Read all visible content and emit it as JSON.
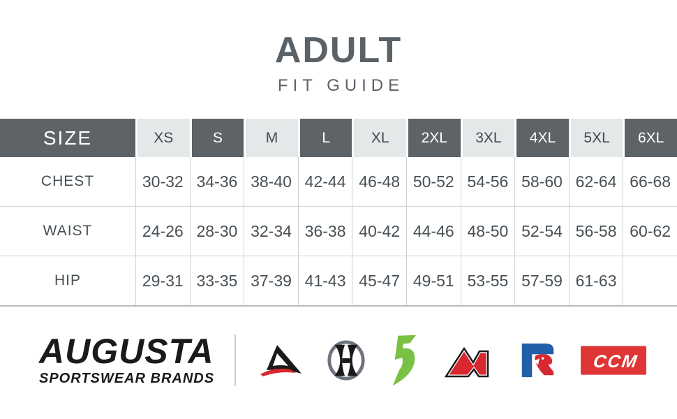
{
  "page": {
    "title": "ADULT",
    "subtitle": "FIT GUIDE"
  },
  "size_table": {
    "corner_label": "SIZE",
    "sizes": [
      "XS",
      "S",
      "M",
      "L",
      "XL",
      "2XL",
      "3XL",
      "4XL",
      "5XL",
      "6XL"
    ],
    "rows": [
      {
        "label": "CHEST",
        "values": [
          "30-32",
          "34-36",
          "38-40",
          "42-44",
          "46-48",
          "50-52",
          "54-56",
          "58-60",
          "62-64",
          "66-68"
        ]
      },
      {
        "label": "WAIST",
        "values": [
          "24-26",
          "28-30",
          "32-34",
          "36-38",
          "40-42",
          "44-46",
          "48-50",
          "52-54",
          "56-58",
          "60-62"
        ]
      },
      {
        "label": "HIP",
        "values": [
          "29-31",
          "33-35",
          "37-39",
          "41-43",
          "45-47",
          "49-51",
          "53-55",
          "57-59",
          "61-63",
          ""
        ]
      }
    ]
  },
  "chart_data": {
    "type": "table",
    "title": "ADULT FIT GUIDE",
    "columns": [
      "SIZE",
      "XS",
      "S",
      "M",
      "L",
      "XL",
      "2XL",
      "3XL",
      "4XL",
      "5XL",
      "6XL"
    ],
    "rows": [
      [
        "CHEST",
        "30-32",
        "34-36",
        "38-40",
        "42-44",
        "46-48",
        "50-52",
        "54-56",
        "58-60",
        "62-64",
        "66-68"
      ],
      [
        "WAIST",
        "24-26",
        "28-30",
        "32-34",
        "36-38",
        "40-42",
        "44-46",
        "48-50",
        "52-54",
        "56-58",
        "60-62"
      ],
      [
        "HIP",
        "29-31",
        "33-35",
        "37-39",
        "41-43",
        "45-47",
        "49-51",
        "53-55",
        "57-59",
        "61-63",
        ""
      ]
    ]
  },
  "footer": {
    "brand_name": "AUGUSTA",
    "brand_tagline": "SPORTSWEAR BRANDS",
    "logo_marks": [
      "augusta",
      "holloway",
      "high-five",
      "pacific-headwear",
      "russell-athletic",
      "ccm"
    ]
  },
  "colors": {
    "title_text": "#5a6268",
    "dark_cell": "#5d6367",
    "dark_cell_text": "#ffffff",
    "light_cell": "#e4e8e8",
    "light_cell_text": "#41494f",
    "value_text": "#475056",
    "grid_border": "#ccd3d7",
    "table_bottom_border": "#b4bdc1",
    "logo_black": "#1a1a1c",
    "swoosh_red": "#d7282f",
    "high_five_green": "#7ac143",
    "russell_blue": "#2160a8",
    "ccm_red": "#e03535",
    "holloway_ring_gray": "#6e747c",
    "divider_gray": "#c8ccd0"
  }
}
